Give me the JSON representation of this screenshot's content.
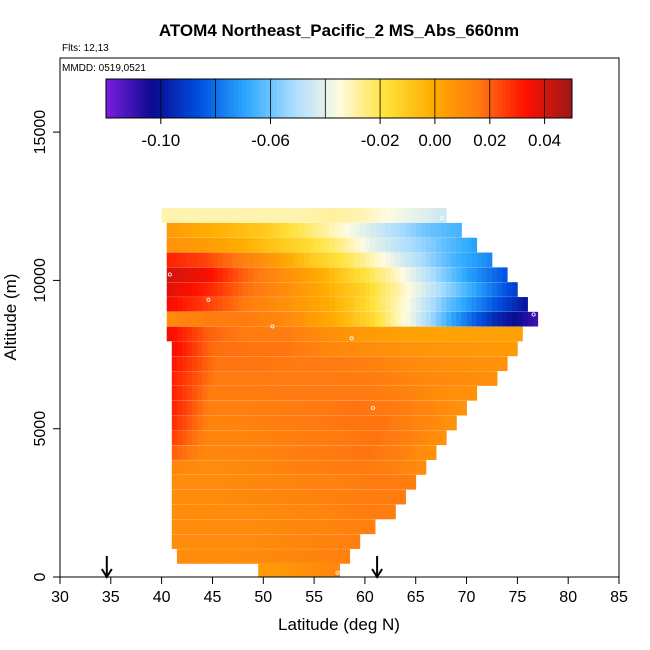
{
  "chart_data": {
    "type": "heatmap",
    "title": "ATOM4 Northeast_Pacific_2 MS_Abs_660nm",
    "flights_label": "Flts: 12,13",
    "date_label": "MMDD: 0519,0521",
    "xlabel": "Latitude (deg N)",
    "ylabel": "Altitude (m)",
    "xlim": [
      30,
      85
    ],
    "ylim": [
      0,
      17500
    ],
    "x_ticks": [
      "30",
      "35",
      "40",
      "45",
      "50",
      "55",
      "60",
      "65",
      "70",
      "75",
      "80",
      "85"
    ],
    "y_ticks": [
      "0",
      "5000",
      "10000",
      "15000"
    ],
    "colorbar": {
      "range": [
        -0.12,
        0.05
      ],
      "tick_labels": [
        "-0.10",
        "-0.06",
        "-0.02",
        "0.00",
        "0.02",
        "0.04"
      ],
      "tick_values": [
        -0.1,
        -0.06,
        -0.02,
        0.0,
        0.02,
        0.04
      ],
      "colors": [
        "#7b1fe0",
        "#0a0a90",
        "#0050e0",
        "#2aa8ff",
        "#a8dcff",
        "#fffbe0",
        "#ffe23a",
        "#ffad00",
        "#ff7a10",
        "#ff1000",
        "#9a1a1a"
      ]
    },
    "arrows_latitude": [
      34.6,
      61.2
    ],
    "layers": [
      {
        "alt": 12200,
        "lat_start": 40,
        "lat_end": 68,
        "values": [
          -0.03,
          -0.03,
          -0.03,
          -0.03,
          -0.03,
          -0.03,
          -0.028,
          -0.03,
          -0.035,
          -0.04,
          -0.045
        ]
      },
      {
        "alt": 11700,
        "lat_start": 40.5,
        "lat_end": 69.5,
        "values": [
          0.005,
          0.0,
          -0.005,
          -0.01,
          -0.02,
          -0.03,
          -0.04,
          -0.05,
          -0.06,
          -0.065
        ]
      },
      {
        "alt": 11200,
        "lat_start": 40.5,
        "lat_end": 71,
        "values": [
          0.008,
          0.005,
          0.0,
          -0.008,
          -0.015,
          -0.025,
          -0.04,
          -0.05,
          -0.06,
          -0.07
        ]
      },
      {
        "alt": 10700,
        "lat_start": 40.5,
        "lat_end": 72.5,
        "values": [
          0.03,
          0.025,
          0.015,
          0.005,
          -0.01,
          -0.02,
          -0.035,
          -0.05,
          -0.065,
          -0.075
        ]
      },
      {
        "alt": 10200,
        "lat_start": 40.5,
        "lat_end": 74,
        "values": [
          0.04,
          0.035,
          0.02,
          0.01,
          0.0,
          -0.015,
          -0.03,
          -0.05,
          -0.07,
          -0.085
        ]
      },
      {
        "alt": 9700,
        "lat_start": 40.5,
        "lat_end": 75,
        "values": [
          0.038,
          0.03,
          0.018,
          0.01,
          0.0,
          -0.012,
          -0.03,
          -0.05,
          -0.07,
          -0.09
        ]
      },
      {
        "alt": 9200,
        "lat_start": 40.5,
        "lat_end": 76,
        "values": [
          0.035,
          0.025,
          0.015,
          0.008,
          0.0,
          -0.015,
          -0.035,
          -0.06,
          -0.08,
          -0.1
        ]
      },
      {
        "alt": 8700,
        "lat_start": 40.5,
        "lat_end": 77,
        "values": [
          0.01,
          0.015,
          0.015,
          0.01,
          0.0,
          -0.015,
          -0.04,
          -0.07,
          -0.095,
          -0.11
        ]
      },
      {
        "alt": 8200,
        "lat_start": 40.5,
        "lat_end": 75.5,
        "values": [
          0.035,
          0.02,
          0.015,
          0.015,
          0.01,
          0.005,
          0.003,
          0.002,
          0.003,
          0.003
        ]
      },
      {
        "alt": 7700,
        "lat_start": 41,
        "lat_end": 75,
        "values": [
          0.035,
          0.018,
          0.017,
          0.017,
          0.012,
          0.01,
          0.008,
          0.007,
          0.006,
          0.005
        ]
      },
      {
        "alt": 7200,
        "lat_start": 41,
        "lat_end": 74,
        "values": [
          0.032,
          0.017,
          0.017,
          0.016,
          0.016,
          0.013,
          0.01,
          0.009,
          0.008
        ]
      },
      {
        "alt": 6700,
        "lat_start": 41,
        "lat_end": 73,
        "values": [
          0.03,
          0.016,
          0.016,
          0.016,
          0.016,
          0.015,
          0.012,
          0.01,
          0.009
        ]
      },
      {
        "alt": 6200,
        "lat_start": 41,
        "lat_end": 71,
        "values": [
          0.03,
          0.015,
          0.015,
          0.016,
          0.016,
          0.016,
          0.014,
          0.01,
          0.008
        ]
      },
      {
        "alt": 5700,
        "lat_start": 41,
        "lat_end": 70,
        "values": [
          0.03,
          0.014,
          0.014,
          0.015,
          0.016,
          0.017,
          0.016,
          0.012,
          0.008
        ]
      },
      {
        "alt": 5200,
        "lat_start": 41,
        "lat_end": 69,
        "values": [
          0.028,
          0.013,
          0.013,
          0.015,
          0.016,
          0.017,
          0.017,
          0.013,
          0.008
        ]
      },
      {
        "alt": 4700,
        "lat_start": 41,
        "lat_end": 68,
        "values": [
          0.025,
          0.012,
          0.012,
          0.014,
          0.015,
          0.016,
          0.017,
          0.014,
          0.008
        ]
      },
      {
        "alt": 4200,
        "lat_start": 41,
        "lat_end": 67,
        "values": [
          0.02,
          0.012,
          0.012,
          0.013,
          0.015,
          0.016,
          0.017,
          0.014,
          0.008
        ]
      },
      {
        "alt": 3700,
        "lat_start": 41,
        "lat_end": 66,
        "values": [
          0.012,
          0.01,
          0.011,
          0.012,
          0.014,
          0.015,
          0.016,
          0.014,
          0.01
        ]
      },
      {
        "alt": 3200,
        "lat_start": 41,
        "lat_end": 65,
        "values": [
          0.01,
          0.01,
          0.011,
          0.012,
          0.013,
          0.014,
          0.016,
          0.015
        ]
      },
      {
        "alt": 2700,
        "lat_start": 41,
        "lat_end": 64,
        "values": [
          0.01,
          0.01,
          0.011,
          0.012,
          0.013,
          0.014,
          0.015,
          0.015
        ]
      },
      {
        "alt": 2200,
        "lat_start": 41,
        "lat_end": 63,
        "values": [
          0.01,
          0.01,
          0.01,
          0.011,
          0.012,
          0.013,
          0.015,
          0.015
        ]
      },
      {
        "alt": 1700,
        "lat_start": 41,
        "lat_end": 61,
        "values": [
          0.01,
          0.01,
          0.01,
          0.011,
          0.012,
          0.013,
          0.014
        ]
      },
      {
        "alt": 1200,
        "lat_start": 41,
        "lat_end": 59.5,
        "values": [
          0.01,
          0.01,
          0.01,
          0.011,
          0.012,
          0.013,
          0.014
        ]
      },
      {
        "alt": 700,
        "lat_start": 41.5,
        "lat_end": 58.5,
        "values": [
          0.01,
          0.01,
          0.01,
          0.011,
          0.012,
          0.013,
          0.014
        ]
      },
      {
        "alt": 250,
        "lat_start": 49.5,
        "lat_end": 57.5,
        "values": [
          0.005,
          0.006,
          0.008,
          0.01,
          0.012
        ]
      }
    ],
    "sample_points": [
      {
        "lat": 40.8,
        "alt": 10200
      },
      {
        "lat": 44.6,
        "alt": 9350
      },
      {
        "lat": 50.9,
        "alt": 8450
      },
      {
        "lat": 58.7,
        "alt": 8050
      },
      {
        "lat": 60.8,
        "alt": 5700
      },
      {
        "lat": 67.6,
        "alt": 12100
      },
      {
        "lat": 76.6,
        "alt": 8850
      },
      {
        "lat": 57.3,
        "alt": 150
      }
    ]
  }
}
